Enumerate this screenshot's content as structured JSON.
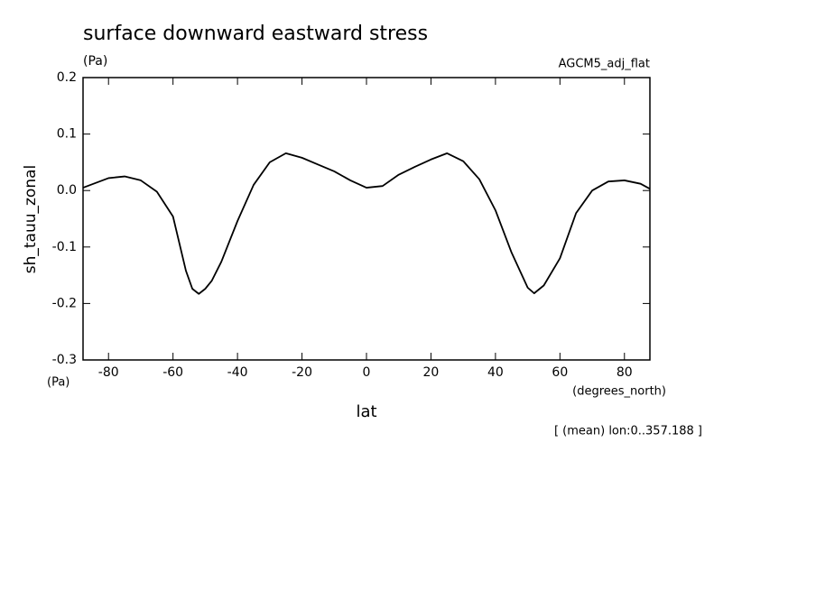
{
  "chart_data": {
    "type": "line",
    "title": "surface downward eastward stress",
    "units_top": "(Pa)",
    "model": "AGCM5_adj_flat",
    "y_label": "sh_tauu_zonal",
    "units_bottom": "(Pa)",
    "x_units": "(degrees_north)",
    "x_label": "lat",
    "annotation": "[ (mean) lon:0..357.188 ]",
    "x": [
      -87.9,
      -80,
      -75,
      -70,
      -65,
      -60,
      -56,
      -54,
      -52,
      -50,
      -48,
      -45,
      -40,
      -35,
      -30,
      -25,
      -20,
      -15,
      -10,
      -5,
      0,
      5,
      10,
      15,
      20,
      25,
      30,
      35,
      40,
      45,
      50,
      52,
      55,
      60,
      65,
      70,
      75,
      80,
      85,
      87.9
    ],
    "series": [
      {
        "name": "sh_tauu_zonal",
        "color": "#000000",
        "values": [
          0.005,
          0.022,
          0.025,
          0.018,
          -0.002,
          -0.046,
          -0.142,
          -0.174,
          -0.183,
          -0.174,
          -0.16,
          -0.126,
          -0.054,
          0.01,
          0.05,
          0.066,
          0.058,
          0.046,
          0.034,
          0.018,
          0.005,
          0.008,
          0.028,
          0.042,
          0.055,
          0.066,
          0.052,
          0.02,
          -0.035,
          -0.11,
          -0.172,
          -0.182,
          -0.168,
          -0.12,
          -0.04,
          0.0,
          0.016,
          0.018,
          0.012,
          0.003
        ]
      }
    ],
    "xlim": [
      -87.9,
      87.9
    ],
    "ylim": [
      -0.3,
      0.2
    ],
    "xticks": [
      -80,
      -60,
      -40,
      -20,
      0,
      20,
      40,
      60,
      80
    ],
    "yticks": [
      -0.3,
      -0.2,
      -0.1,
      {
        "value": 0,
        "label": "0.0"
      },
      0.1,
      0.2
    ]
  }
}
